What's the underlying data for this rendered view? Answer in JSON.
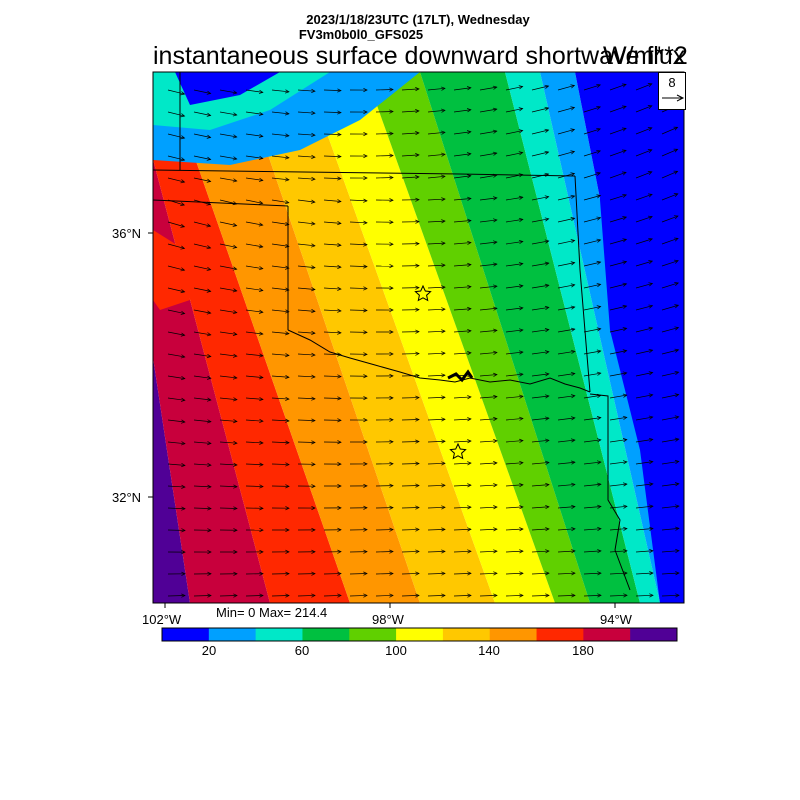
{
  "header": {
    "date_line": "2023/1/18/23UTC (17LT), Wednesday",
    "model_line": "FV3m0b0l0_GFS025",
    "field_title": "instantaneous surface downward shortwave flux",
    "field_units": "W/m**2"
  },
  "vector_reference": {
    "value": "8"
  },
  "axes": {
    "lat_labels": [
      "36°N",
      "32°N"
    ],
    "lon_labels": [
      "102°W",
      "98°W",
      "94°W"
    ]
  },
  "stats": {
    "text": "Min= 0 Max= 214.4"
  },
  "colorbar": {
    "colors": [
      "#0000ff",
      "#00a0ff",
      "#00e8c8",
      "#00c040",
      "#60d000",
      "#ffff00",
      "#ffc800",
      "#ff9600",
      "#ff2800",
      "#c8003c",
      "#500096"
    ],
    "tick_labels": [
      "20",
      "60",
      "100",
      "140",
      "180"
    ]
  },
  "map": {
    "markers": [
      "star-marker",
      "star-marker"
    ],
    "colors": {
      "vector": "#000000",
      "border": "#000000"
    }
  }
}
